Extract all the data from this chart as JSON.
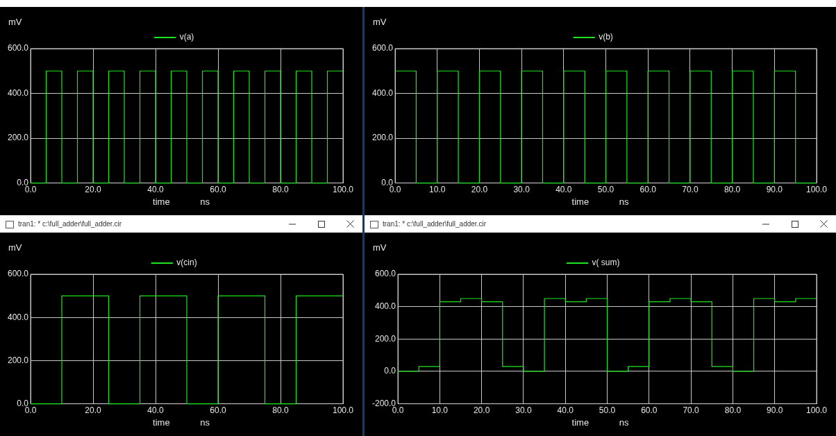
{
  "chart_data": [
    {
      "type": "step",
      "xlabel": "time ns",
      "ylabel": "mV",
      "x": [
        0,
        5,
        10,
        15,
        20,
        25,
        30,
        35,
        40,
        45,
        50,
        55,
        60,
        65,
        70,
        75,
        80,
        85,
        90,
        95,
        100
      ],
      "series": [
        {
          "name": "v(a)",
          "color": "#1ee61e",
          "values": [
            0,
            500,
            0,
            500,
            0,
            500,
            0,
            500,
            0,
            500,
            0,
            500,
            0,
            500,
            0,
            500,
            0,
            500,
            0,
            500,
            500
          ]
        }
      ],
      "xlim": [
        0,
        100
      ],
      "xticks": [
        {
          "value": 0,
          "label": "0.0"
        },
        {
          "value": 20,
          "label": "20.0"
        },
        {
          "value": 40,
          "label": "40.0"
        },
        {
          "value": 60,
          "label": "60.0"
        },
        {
          "value": 80,
          "label": "80.0"
        },
        {
          "value": 100,
          "label": "100.0"
        }
      ],
      "ylim": [
        0,
        600
      ],
      "yticks": [
        {
          "value": 0,
          "label": "0.0"
        },
        {
          "value": 200,
          "label": "200.0"
        },
        {
          "value": 400,
          "label": "400.0"
        },
        {
          "value": 600,
          "label": "600.0"
        }
      ],
      "grid": true,
      "legend": "top"
    },
    {
      "type": "step",
      "xlabel": "time ns",
      "ylabel": "mV",
      "x": [
        0,
        5,
        10,
        15,
        20,
        25,
        30,
        35,
        40,
        45,
        50,
        55,
        60,
        65,
        70,
        75,
        80,
        85,
        90,
        95,
        100
      ],
      "series": [
        {
          "name": "v(b)",
          "color": "#1ee61e",
          "values": [
            500,
            0,
            500,
            0,
            500,
            0,
            500,
            0,
            500,
            0,
            500,
            0,
            500,
            0,
            500,
            0,
            500,
            0,
            500,
            0,
            0
          ]
        }
      ],
      "xlim": [
        0,
        100
      ],
      "xticks": [
        {
          "value": 0,
          "label": "0.0"
        },
        {
          "value": 10,
          "label": "10.0"
        },
        {
          "value": 20,
          "label": "20.0"
        },
        {
          "value": 30,
          "label": "30.0"
        },
        {
          "value": 40,
          "label": "40.0"
        },
        {
          "value": 50,
          "label": "50.0"
        },
        {
          "value": 60,
          "label": "60.0"
        },
        {
          "value": 70,
          "label": "70.0"
        },
        {
          "value": 80,
          "label": "80.0"
        },
        {
          "value": 90,
          "label": "90.0"
        },
        {
          "value": 100,
          "label": "100.0"
        }
      ],
      "ylim": [
        0,
        600
      ],
      "yticks": [
        {
          "value": 0,
          "label": "0.0"
        },
        {
          "value": 200,
          "label": "200.0"
        },
        {
          "value": 400,
          "label": "400.0"
        },
        {
          "value": 600,
          "label": "600.0"
        }
      ],
      "grid": true,
      "legend": "top"
    },
    {
      "type": "step",
      "xlabel": "time ns",
      "ylabel": "mV",
      "annotations": [
        "tran1: * c:\\full_adder\\full_adder.cir"
      ],
      "x": [
        0,
        10,
        25,
        35,
        50,
        60,
        75,
        85,
        100
      ],
      "series": [
        {
          "name": "v(cin)",
          "color": "#1ee61e",
          "values": [
            0,
            500,
            0,
            500,
            0,
            500,
            0,
            500,
            500
          ]
        }
      ],
      "xlim": [
        0,
        100
      ],
      "xticks": [
        {
          "value": 0,
          "label": "0.0"
        },
        {
          "value": 20,
          "label": "20.0"
        },
        {
          "value": 40,
          "label": "40.0"
        },
        {
          "value": 60,
          "label": "60.0"
        },
        {
          "value": 80,
          "label": "80.0"
        },
        {
          "value": 100,
          "label": "100.0"
        }
      ],
      "ylim": [
        0,
        600
      ],
      "yticks": [
        {
          "value": 0,
          "label": "0.0"
        },
        {
          "value": 200,
          "label": "200.0"
        },
        {
          "value": 400,
          "label": "400.0"
        },
        {
          "value": 600,
          "label": "600.0"
        }
      ],
      "grid": true,
      "legend": "top"
    },
    {
      "type": "step",
      "xlabel": "time ns",
      "ylabel": "mV",
      "annotations": [
        "tran1: * c:\\full_adder\\full_adder.cir"
      ],
      "x": [
        0,
        5,
        10,
        15,
        20,
        25,
        30,
        35,
        40,
        45,
        50,
        55,
        60,
        65,
        70,
        75,
        80,
        85,
        90,
        95,
        100
      ],
      "series": [
        {
          "name": "v( sum)",
          "color": "#1ee61e",
          "values": [
            0,
            30,
            430,
            450,
            430,
            30,
            0,
            450,
            430,
            450,
            0,
            30,
            430,
            450,
            430,
            30,
            0,
            450,
            430,
            450,
            450
          ]
        }
      ],
      "xlim": [
        0,
        100
      ],
      "xticks": [
        {
          "value": 0,
          "label": "0.0"
        },
        {
          "value": 10,
          "label": "10.0"
        },
        {
          "value": 20,
          "label": "20.0"
        },
        {
          "value": 30,
          "label": "30.0"
        },
        {
          "value": 40,
          "label": "40.0"
        },
        {
          "value": 50,
          "label": "50.0"
        },
        {
          "value": 60,
          "label": "60.0"
        },
        {
          "value": 70,
          "label": "70.0"
        },
        {
          "value": 80,
          "label": "80.0"
        },
        {
          "value": 90,
          "label": "90.0"
        },
        {
          "value": 100,
          "label": "100.0"
        }
      ],
      "ylim": [
        -200,
        600
      ],
      "yticks": [
        {
          "value": -200,
          "label": "-200.0"
        },
        {
          "value": 0,
          "label": "0.0"
        },
        {
          "value": 200,
          "label": "200.0"
        },
        {
          "value": 400,
          "label": "400.0"
        },
        {
          "value": 600,
          "label": "600.0"
        }
      ],
      "grid": true,
      "legend": "top"
    }
  ]
}
